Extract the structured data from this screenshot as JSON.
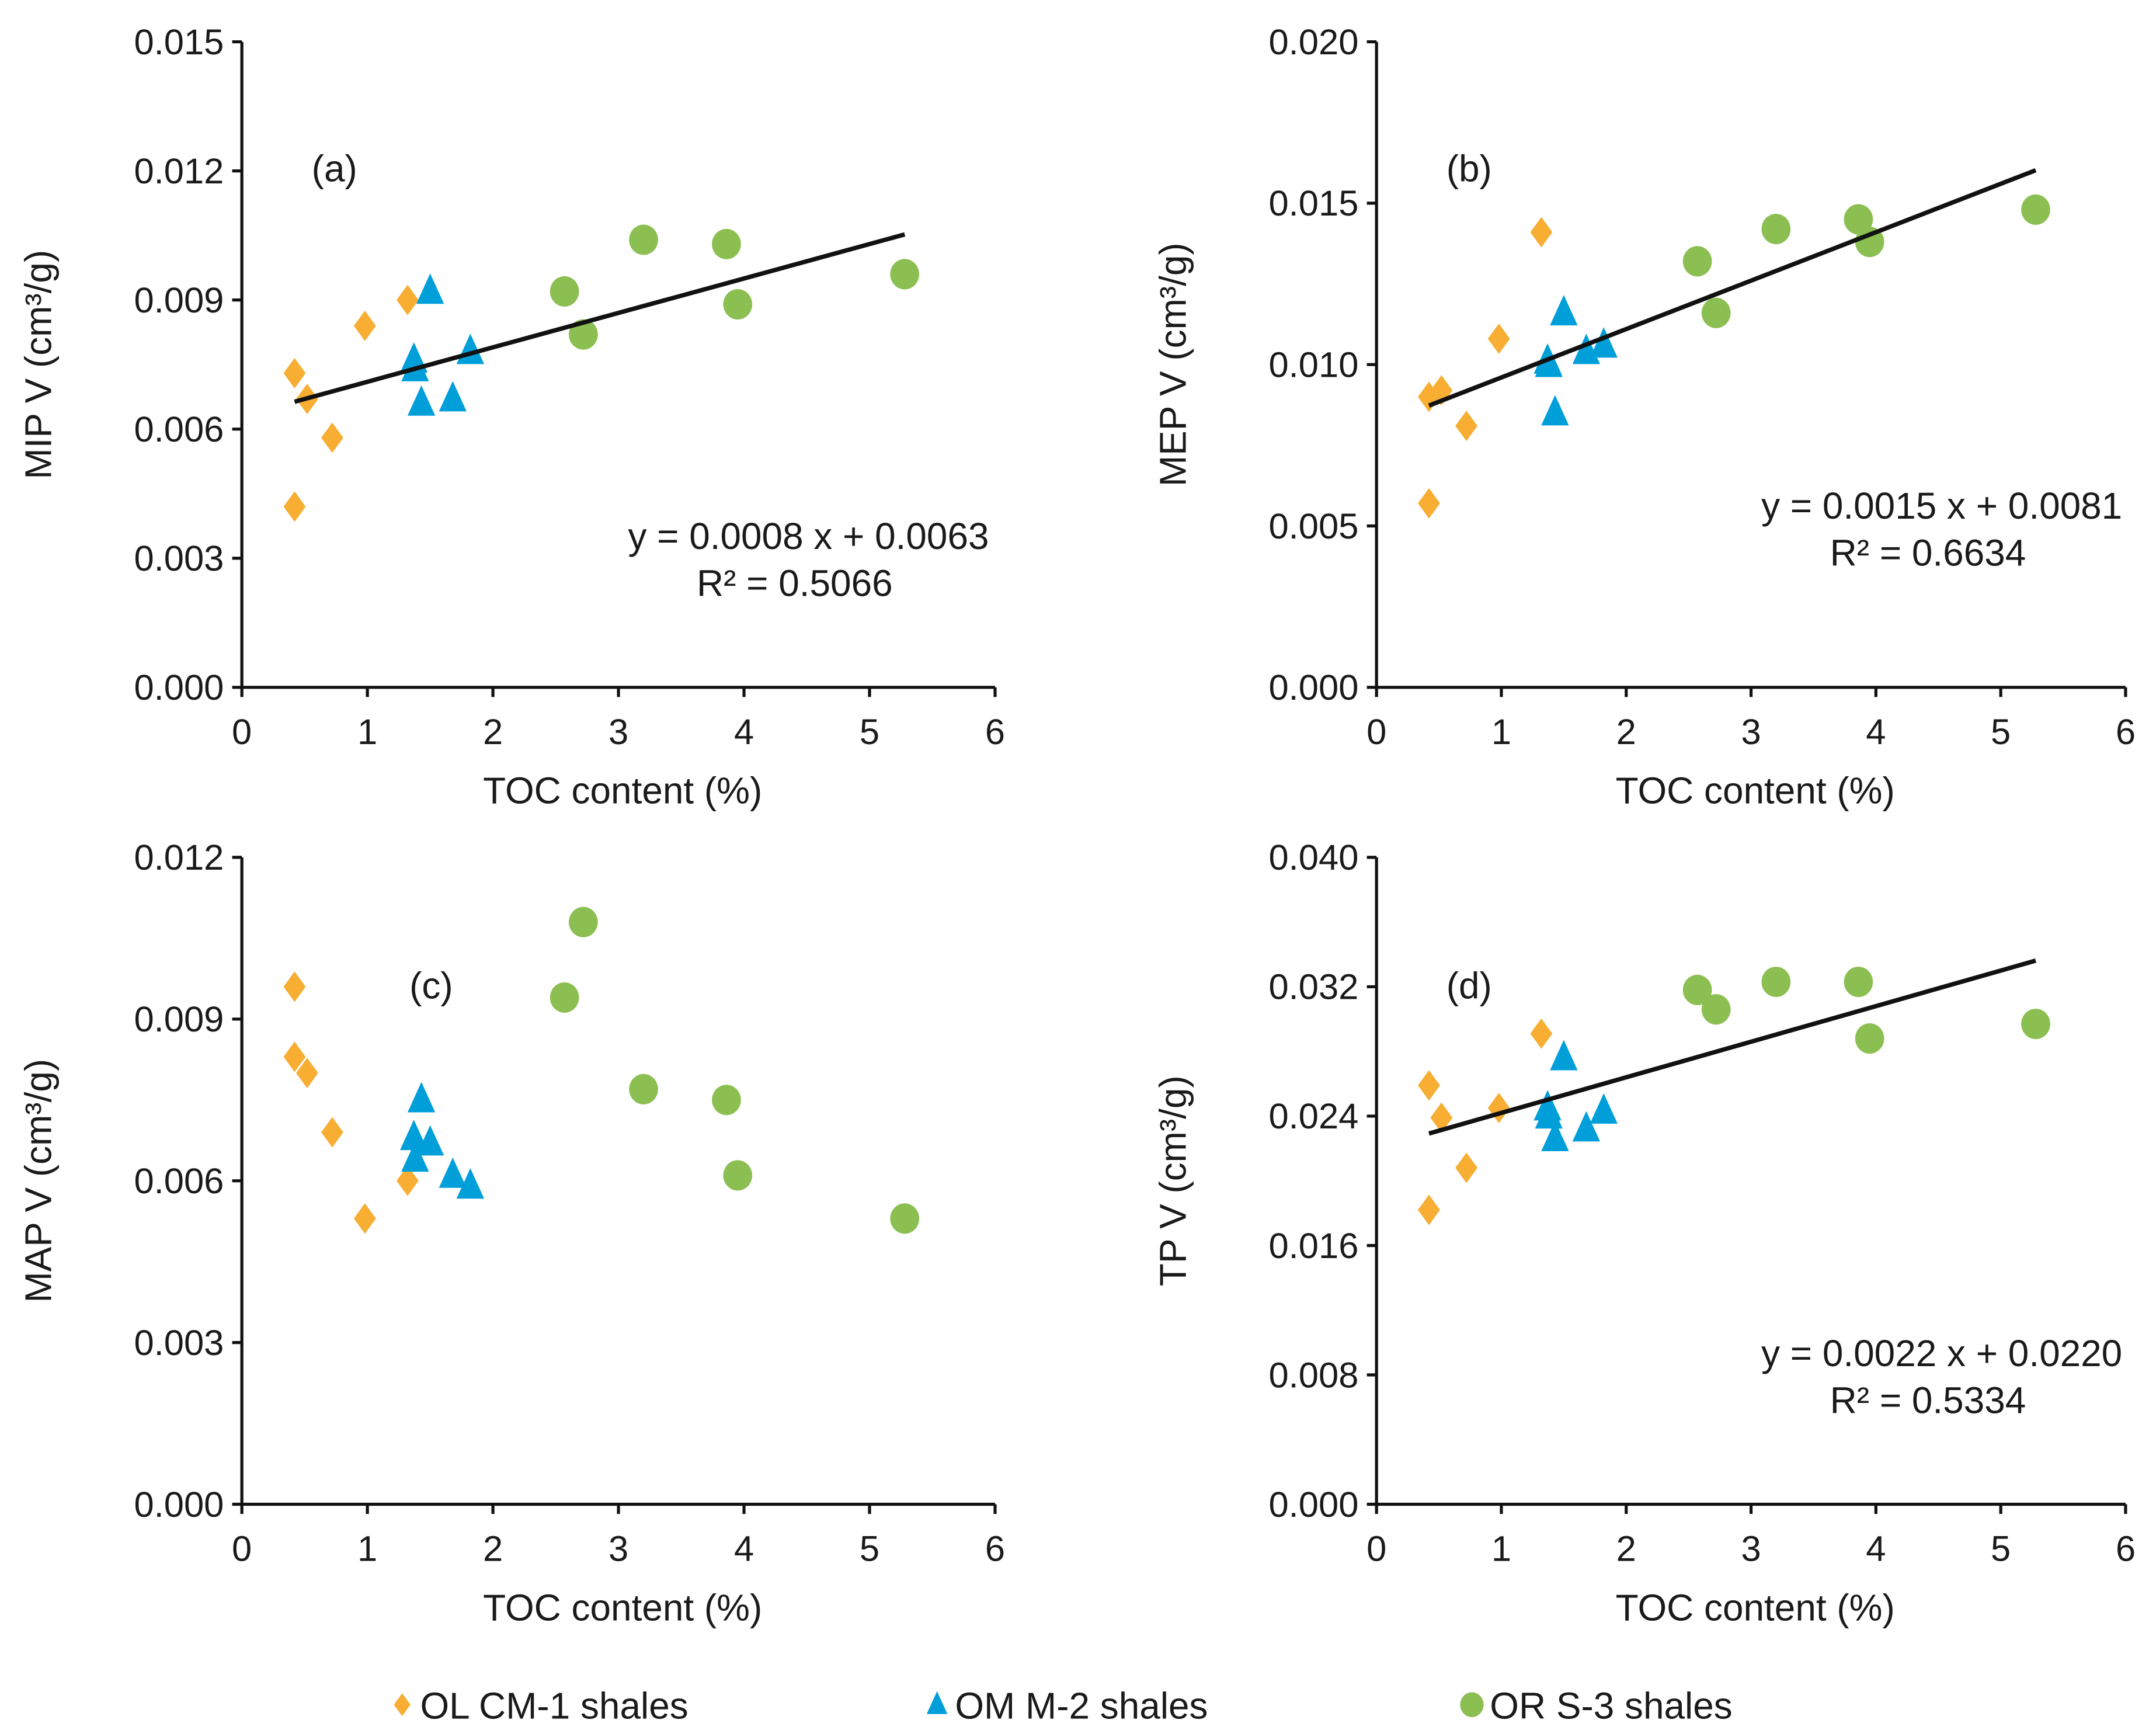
{
  "colors": {
    "OL": "#F7AE33",
    "OM": "#009FD9",
    "OR": "#8CBF52",
    "trend": "#111111"
  },
  "legend": [
    {
      "key": "OL",
      "label": "OL CM-1 shales",
      "marker": "diamond"
    },
    {
      "key": "OM",
      "label": "OM M-2 shales",
      "marker": "triangle"
    },
    {
      "key": "OR",
      "label": "OR S-3 shales",
      "marker": "circle"
    }
  ],
  "chart_data": [
    {
      "type": "scatter",
      "panel_label": "(a)",
      "xlabel": "TOC content (%)",
      "ylabel": "MIP V (cm³/g)",
      "xlim": [
        0,
        6
      ],
      "xticks": [
        "0",
        "1",
        "2",
        "3",
        "4",
        "5",
        "6"
      ],
      "ylim": [
        0,
        0.015
      ],
      "yticks": [
        "0.000",
        "0.003",
        "0.006",
        "0.009",
        "0.012",
        "0.015"
      ],
      "series": [
        {
          "key": "OL",
          "x": [
            0.42,
            0.42,
            0.52,
            0.72,
            0.98,
            1.32
          ],
          "y": [
            0.0073,
            0.0042,
            0.0067,
            0.0058,
            0.0084,
            0.009
          ]
        },
        {
          "key": "OM",
          "x": [
            1.37,
            1.38,
            1.43,
            1.5,
            1.68,
            1.82
          ],
          "y": [
            0.0076,
            0.0074,
            0.0066,
            0.0092,
            0.0067,
            0.0078
          ]
        },
        {
          "key": "OR",
          "x": [
            2.57,
            2.72,
            3.2,
            3.86,
            3.95,
            5.28
          ],
          "y": [
            0.0092,
            0.0082,
            0.0104,
            0.0103,
            0.0089,
            0.0096
          ]
        }
      ],
      "trendline": {
        "slope": 0.0008,
        "intercept": 0.0063,
        "x_range": [
          0.42,
          5.28
        ],
        "equation": "y = 0.0008 x + 0.0063",
        "r2": "R² = 0.5066"
      }
    },
    {
      "type": "scatter",
      "panel_label": "(b)",
      "xlabel": "TOC content (%)",
      "ylabel": "MEP V (cm³/g)",
      "xlim": [
        0,
        6
      ],
      "xticks": [
        "0",
        "1",
        "2",
        "3",
        "4",
        "5",
        "6"
      ],
      "ylim": [
        0,
        0.02
      ],
      "yticks": [
        "0.000",
        "0.005",
        "0.010",
        "0.015",
        "0.020"
      ],
      "series": [
        {
          "key": "OL",
          "x": [
            0.42,
            0.42,
            0.52,
            0.72,
            0.98,
            1.32
          ],
          "y": [
            0.009,
            0.0057,
            0.0092,
            0.0081,
            0.0108,
            0.0141
          ]
        },
        {
          "key": "OM",
          "x": [
            1.37,
            1.38,
            1.43,
            1.5,
            1.68,
            1.82
          ],
          "y": [
            0.0101,
            0.01,
            0.0085,
            0.0116,
            0.0104,
            0.0106
          ]
        },
        {
          "key": "OR",
          "x": [
            2.57,
            2.72,
            3.2,
            3.86,
            3.95,
            5.28
          ],
          "y": [
            0.0132,
            0.0116,
            0.0142,
            0.0145,
            0.0138,
            0.0148
          ]
        }
      ],
      "trendline": {
        "slope": 0.0015,
        "intercept": 0.0081,
        "x_range": [
          0.42,
          5.28
        ],
        "equation": "y = 0.0015 x + 0.0081",
        "r2": "R² = 0.6634"
      }
    },
    {
      "type": "scatter",
      "panel_label": "(c)",
      "xlabel": "TOC content (%)",
      "ylabel": "MAP V (cm³/g)",
      "xlim": [
        0,
        6
      ],
      "xticks": [
        "0",
        "1",
        "2",
        "3",
        "4",
        "5",
        "6"
      ],
      "ylim": [
        0,
        0.012
      ],
      "yticks": [
        "0.000",
        "0.003",
        "0.006",
        "0.009",
        "0.012"
      ],
      "series": [
        {
          "key": "OL",
          "x": [
            0.42,
            0.42,
            0.52,
            0.72,
            0.98,
            1.32
          ],
          "y": [
            0.0096,
            0.0083,
            0.008,
            0.0069,
            0.0053,
            0.006
          ]
        },
        {
          "key": "OM",
          "x": [
            1.37,
            1.38,
            1.43,
            1.5,
            1.68,
            1.82
          ],
          "y": [
            0.0068,
            0.0064,
            0.0075,
            0.0067,
            0.0061,
            0.0059
          ]
        },
        {
          "key": "OR",
          "x": [
            2.57,
            2.72,
            3.2,
            3.86,
            3.95,
            5.28
          ],
          "y": [
            0.0094,
            0.0108,
            0.0077,
            0.0075,
            0.0061,
            0.0053
          ]
        }
      ]
    },
    {
      "type": "scatter",
      "panel_label": "(d)",
      "xlabel": "TOC content (%)",
      "ylabel": "TP V (cm³/g)",
      "xlim": [
        0,
        6
      ],
      "xticks": [
        "0",
        "1",
        "2",
        "3",
        "4",
        "5",
        "6"
      ],
      "ylim": [
        0,
        0.04
      ],
      "yticks": [
        "0.000",
        "0.008",
        "0.016",
        "0.024",
        "0.032",
        "0.040"
      ],
      "series": [
        {
          "key": "OL",
          "x": [
            0.42,
            0.42,
            0.52,
            0.72,
            0.98,
            1.32
          ],
          "y": [
            0.0259,
            0.0182,
            0.0239,
            0.0208,
            0.0245,
            0.0291
          ]
        },
        {
          "key": "OM",
          "x": [
            1.37,
            1.38,
            1.43,
            1.5,
            1.68,
            1.82
          ],
          "y": [
            0.0245,
            0.024,
            0.0226,
            0.0276,
            0.0232,
            0.0243
          ]
        },
        {
          "key": "OR",
          "x": [
            2.57,
            2.72,
            3.2,
            3.86,
            3.95,
            5.28
          ],
          "y": [
            0.0318,
            0.0306,
            0.0323,
            0.0323,
            0.0288,
            0.0297
          ]
        }
      ],
      "trendline": {
        "slope": 0.0022,
        "intercept": 0.022,
        "x_range": [
          0.42,
          5.28
        ],
        "equation": "y = 0.0022 x + 0.0220",
        "r2": "R² = 0.5334"
      }
    }
  ]
}
